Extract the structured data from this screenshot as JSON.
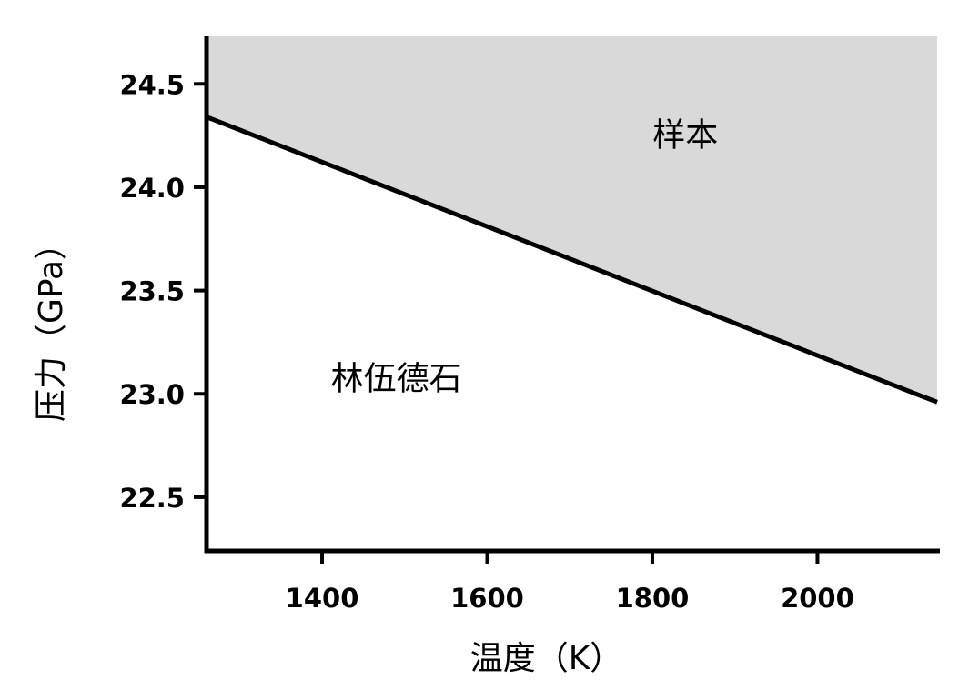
{
  "chart_data": {
    "type": "area",
    "xlabel": "温度（K）",
    "ylabel": "压力（GPa）",
    "xlim": [
      1260,
      2145
    ],
    "ylim": [
      22.24,
      24.73
    ],
    "xticks": [
      1400,
      1600,
      1800,
      2000
    ],
    "yticks": [
      22.5,
      23.0,
      23.5,
      24.0,
      24.5
    ],
    "xtick_labels": [
      "1400",
      "1600",
      "1800",
      "2000"
    ],
    "ytick_labels": [
      "22.5",
      "23.0",
      "23.5",
      "24.0",
      "24.5"
    ],
    "boundary": {
      "x": [
        1260,
        2145
      ],
      "y": [
        24.34,
        22.96
      ]
    },
    "regions": [
      {
        "label": "样本",
        "side": "above",
        "fill": "#d9d9d9",
        "label_at": [
          1840,
          24.2
        ]
      },
      {
        "label": "林伍德石",
        "side": "below",
        "fill": "#ffffff",
        "label_at": [
          1490,
          23.02
        ]
      }
    ],
    "grid": false,
    "colors": {
      "boundary": "#000000",
      "axis": "#000000"
    }
  }
}
